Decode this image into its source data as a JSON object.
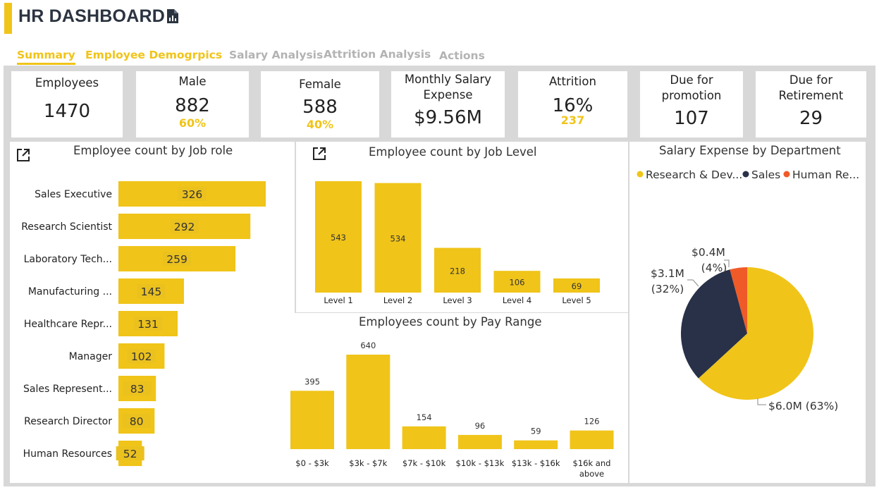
{
  "header": {
    "title": "HR DASHBOARD",
    "icon": "report-file-icon",
    "accent_color": "#F0C419"
  },
  "tabs": [
    {
      "label": "Summary",
      "active": true
    },
    {
      "label": "Employee Demogrpics",
      "active": true
    },
    {
      "label": "Salary Analysis",
      "active": false
    },
    {
      "label": "Attrition Analysis",
      "active": false
    },
    {
      "label": "Actions",
      "active": false
    }
  ],
  "kpis": {
    "employees": {
      "label": "Employees",
      "value": "1470"
    },
    "male": {
      "label": "Male",
      "value": "882",
      "sub": "60%"
    },
    "female": {
      "label": "Female",
      "value": "588",
      "sub": "40%"
    },
    "salary": {
      "label_line1": "Monthly Salary",
      "label_line2": "Expense",
      "value": "$9.56M"
    },
    "attrition": {
      "label": "Attrition",
      "value": "16%",
      "sub": "237"
    },
    "promotion": {
      "label_line1": "Due for",
      "label_line2": "promotion",
      "value": "107"
    },
    "retirement": {
      "label_line1": "Due for",
      "label_line2": "Retirement",
      "value": "29"
    }
  },
  "chart_data": [
    {
      "type": "bar",
      "orientation": "horizontal",
      "title": "Employee count by Job role",
      "categories": [
        "Sales Executive",
        "Research Scientist",
        "Laboratory Tech...",
        "Manufacturing ...",
        "Healthcare Repr...",
        "Manager",
        "Sales Represent...",
        "Research Director",
        "Human Resources"
      ],
      "values": [
        326,
        292,
        259,
        145,
        131,
        102,
        83,
        80,
        52
      ],
      "color": "#F0C419",
      "xlim": [
        0,
        326
      ]
    },
    {
      "type": "bar",
      "title": "Employee count by Job Level",
      "categories": [
        "Level 1",
        "Level 2",
        "Level 3",
        "Level 4",
        "Level 5"
      ],
      "values": [
        543,
        534,
        218,
        106,
        69
      ],
      "color": "#F0C419",
      "ylim": [
        0,
        543
      ]
    },
    {
      "type": "bar",
      "title": "Employees count by Pay Range",
      "categories": [
        "$0 - $3k",
        "$3k - $7k",
        "$7k - $10k",
        "$10k - $13k",
        "$13k - $16k",
        "$16k and above"
      ],
      "values": [
        395,
        640,
        154,
        96,
        59,
        126
      ],
      "color": "#F0C419",
      "ylim": [
        0,
        640
      ]
    },
    {
      "type": "pie",
      "title": "Salary Expense by Department",
      "legend": [
        "Research & Dev...",
        "Sales",
        "Human Re..."
      ],
      "legend_position": "top",
      "slices": [
        {
          "name": "Research & Development",
          "value": 6.0,
          "label": "$6.0M (63%)",
          "color": "#F0C419"
        },
        {
          "name": "Sales",
          "value": 3.1,
          "label_value": "$3.1M",
          "label_pct": "(32%)",
          "color": "#283148"
        },
        {
          "name": "Human Resources",
          "value": 0.4,
          "label_value": "$0.4M",
          "label_pct": "(4%)",
          "color": "#F05A28"
        }
      ]
    }
  ]
}
